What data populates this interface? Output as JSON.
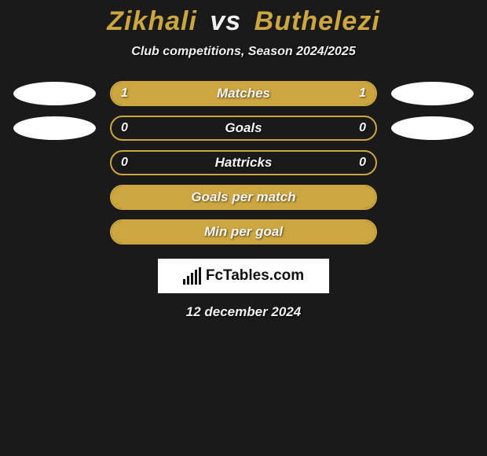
{
  "title": {
    "player1": "Zikhali",
    "vs": "vs",
    "player2": "Buthelezi"
  },
  "subtitle": "Club competitions, Season 2024/2025",
  "colors": {
    "player1_primary": "#cca640",
    "player1_ellipse": "#ffffff",
    "player2_primary": "#cca640",
    "player2_ellipse": "#ffffff",
    "bar_border": "#cca640",
    "title_p1": "#cca640",
    "title_p2": "#cca640"
  },
  "rows": [
    {
      "label": "Matches",
      "left_val": "1",
      "right_val": "1",
      "left_pct": 50,
      "right_pct": 50,
      "left_fill": "#cca640",
      "right_fill": "#cca640",
      "show_left_ellipse": true,
      "show_right_ellipse": true
    },
    {
      "label": "Goals",
      "left_val": "0",
      "right_val": "0",
      "left_pct": 0,
      "right_pct": 0,
      "left_fill": "#cca640",
      "right_fill": "#cca640",
      "show_left_ellipse": true,
      "show_right_ellipse": true
    },
    {
      "label": "Hattricks",
      "left_val": "0",
      "right_val": "0",
      "left_pct": 0,
      "right_pct": 0,
      "left_fill": "#cca640",
      "right_fill": "#cca640",
      "show_left_ellipse": false,
      "show_right_ellipse": false
    },
    {
      "label": "Goals per match",
      "left_val": "",
      "right_val": "",
      "left_pct": 100,
      "right_pct": 0,
      "left_fill": "#cca640",
      "right_fill": "#cca640",
      "show_left_ellipse": false,
      "show_right_ellipse": false
    },
    {
      "label": "Min per goal",
      "left_val": "",
      "right_val": "",
      "left_pct": 100,
      "right_pct": 0,
      "left_fill": "#cca640",
      "right_fill": "#cca640",
      "show_left_ellipse": false,
      "show_right_ellipse": false
    }
  ],
  "logo_text": "FcTables.com",
  "date": "12 december 2024"
}
